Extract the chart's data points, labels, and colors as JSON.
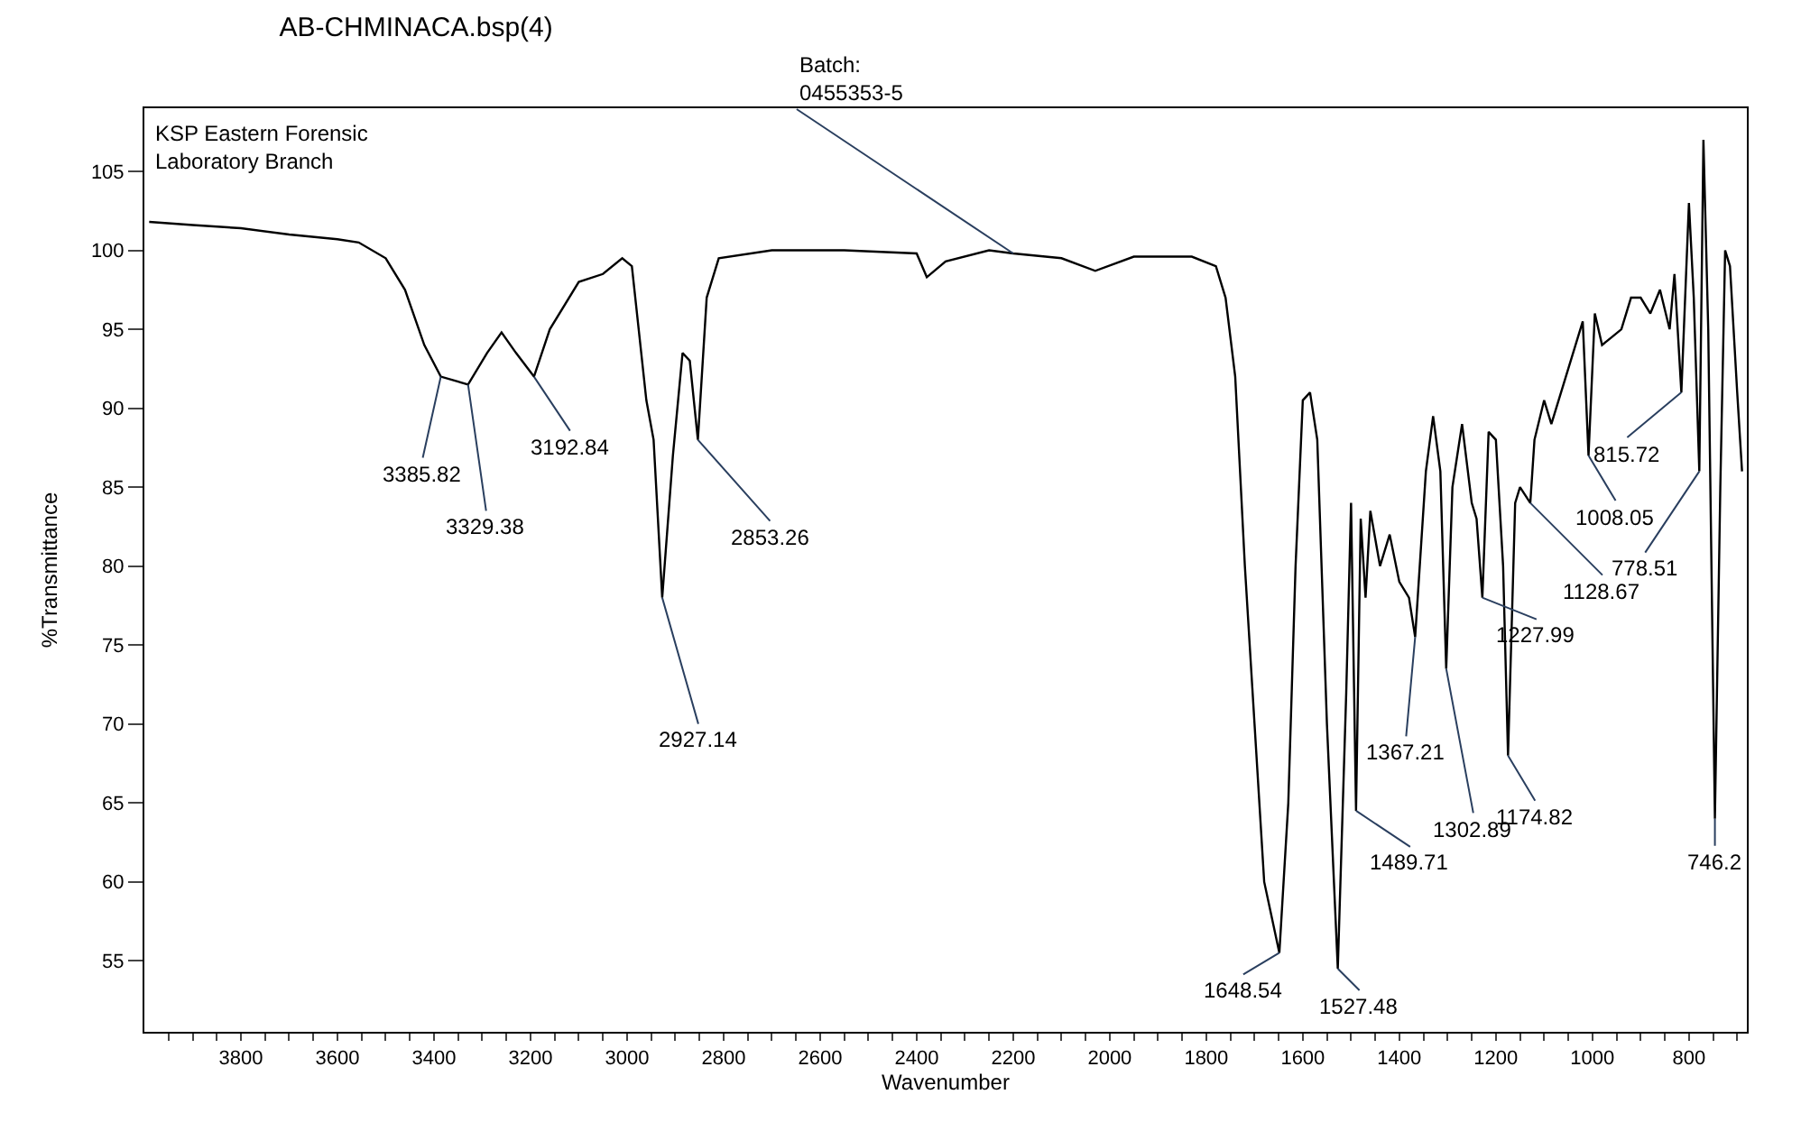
{
  "chart_data": {
    "type": "line",
    "title": "AB-CHMINACA.bsp(4)",
    "xlabel": "Wavenumber",
    "ylabel": "%Transmittance",
    "x": [
      3990,
      3900,
      3800,
      3700,
      3600,
      3556,
      3500,
      3460,
      3420,
      3385.82,
      3329.38,
      3290,
      3260,
      3230,
      3192.84,
      3160,
      3100,
      3050,
      3010,
      2990,
      2960,
      2945,
      2927.14,
      2905,
      2885,
      2870,
      2853.26,
      2835,
      2810,
      2700,
      2550,
      2400,
      2379,
      2340,
      2250,
      2200,
      2100,
      2030,
      1950,
      1830,
      1780,
      1760,
      1740,
      1720,
      1700,
      1680,
      1648.54,
      1630,
      1615,
      1600,
      1585,
      1570,
      1550,
      1527.48,
      1510,
      1500,
      1489.71,
      1480,
      1470,
      1460,
      1440,
      1420,
      1400,
      1380,
      1367.21,
      1345,
      1330,
      1315,
      1302.89,
      1290,
      1270,
      1250,
      1240,
      1227.99,
      1215,
      1200,
      1185,
      1174.82,
      1160,
      1150,
      1128.67,
      1120,
      1100,
      1085,
      1060,
      1040,
      1020,
      1008.05,
      995,
      980,
      960,
      940,
      920,
      900,
      880,
      860,
      840,
      830,
      815.72,
      800,
      790,
      778.51,
      770,
      760,
      746.2,
      735,
      725,
      715,
      700,
      690
    ],
    "values": [
      101.8,
      101.6,
      101.4,
      101,
      100.7,
      100.5,
      99.5,
      97.5,
      94,
      92,
      91.5,
      93.5,
      94.8,
      93.5,
      92,
      95,
      98,
      98.5,
      99.5,
      99,
      90.5,
      88,
      78,
      87,
      93.5,
      93,
      88,
      97,
      99.5,
      100,
      100,
      99.8,
      98.3,
      99.3,
      100,
      99.8,
      99.5,
      98.7,
      99.6,
      99.6,
      99,
      97,
      92,
      80,
      70,
      60,
      55.5,
      65,
      80,
      90.5,
      91,
      88,
      70,
      54.5,
      72,
      84,
      64.5,
      83,
      78,
      83.5,
      80,
      82,
      79,
      78,
      75.5,
      86,
      89.5,
      86,
      73.5,
      85,
      89,
      84,
      83,
      78,
      88.5,
      88,
      80,
      68,
      84,
      85,
      84,
      88,
      90.5,
      89,
      91.5,
      93.5,
      95.5,
      87,
      96,
      94,
      94.5,
      95,
      97,
      97,
      96,
      97.5,
      95,
      98.5,
      91,
      103,
      97,
      86,
      107,
      95,
      64,
      85,
      100,
      99,
      91,
      86
    ],
    "color": "#000000",
    "line_style": "solid",
    "marker": "none",
    "legend": false,
    "xlim": [
      4000,
      680
    ],
    "ylim": [
      50.5,
      109
    ],
    "yticks": [
      55,
      60,
      65,
      70,
      75,
      80,
      85,
      90,
      95,
      100,
      105
    ],
    "xticks": [
      {
        "value": 3950,
        "label": null
      },
      {
        "value": 3900,
        "label": null
      },
      {
        "value": 3850,
        "label": null
      },
      3800,
      {
        "value": 3750,
        "label": null
      },
      {
        "value": 3700,
        "label": null
      },
      {
        "value": 3650,
        "label": null
      },
      3600,
      {
        "value": 3550,
        "label": null
      },
      {
        "value": 3500,
        "label": null
      },
      {
        "value": 3450,
        "label": null
      },
      3400,
      {
        "value": 3350,
        "label": null
      },
      {
        "value": 3300,
        "label": null
      },
      {
        "value": 3250,
        "label": null
      },
      3200,
      {
        "value": 3150,
        "label": null
      },
      {
        "value": 3100,
        "label": null
      },
      {
        "value": 3050,
        "label": null
      },
      3000,
      {
        "value": 2950,
        "label": null
      },
      {
        "value": 2900,
        "label": null
      },
      {
        "value": 2850,
        "label": null
      },
      2800,
      {
        "value": 2750,
        "label": null
      },
      {
        "value": 2700,
        "label": null
      },
      {
        "value": 2650,
        "label": null
      },
      2600,
      {
        "value": 2550,
        "label": null
      },
      {
        "value": 2500,
        "label": null
      },
      {
        "value": 2450,
        "label": null
      },
      2400,
      {
        "value": 2350,
        "label": null
      },
      {
        "value": 2300,
        "label": null
      },
      {
        "value": 2250,
        "label": null
      },
      2200,
      {
        "value": 2150,
        "label": null
      },
      {
        "value": 2100,
        "label": null
      },
      {
        "value": 2050,
        "label": null
      },
      2000,
      {
        "value": 1950,
        "label": null
      },
      {
        "value": 1900,
        "label": null
      },
      {
        "value": 1850,
        "label": null
      },
      1800,
      {
        "value": 1750,
        "label": null
      },
      {
        "value": 1700,
        "label": null
      },
      {
        "value": 1650,
        "label": null
      },
      1600,
      {
        "value": 1550,
        "label": null
      },
      {
        "value": 1500,
        "label": null
      },
      {
        "value": 1450,
        "label": null
      },
      1400,
      {
        "value": 1350,
        "label": null
      },
      {
        "value": 1300,
        "label": null
      },
      {
        "value": 1250,
        "label": null
      },
      1200,
      {
        "value": 1150,
        "label": null
      },
      {
        "value": 1100,
        "label": null
      },
      {
        "value": 1050,
        "label": null
      },
      1000,
      {
        "value": 950,
        "label": null
      },
      {
        "value": 900,
        "label": null
      },
      {
        "value": 850,
        "label": null
      },
      800,
      {
        "value": 750,
        "label": null
      },
      {
        "value": 700,
        "label": null
      }
    ],
    "annotations": [
      "KSP Eastern Forensic\nLaboratory Branch",
      {
        "text": "Batch:\n0455353-5",
        "x": 2200,
        "y": 99.8
      },
      {
        "text": "3385.82",
        "x": 3385.82,
        "y": 92
      },
      {
        "text": "3329.38",
        "x": 3329.38,
        "y": 91.5
      },
      {
        "text": "3192.84",
        "x": 3192.84,
        "y": 92
      },
      {
        "text": "2927.14",
        "x": 2927.14,
        "y": 78
      },
      {
        "text": "2853.26",
        "x": 2853.26,
        "y": 88
      },
      {
        "text": "1648.54",
        "x": 1648.54,
        "y": 55.5
      },
      {
        "text": "1527.48",
        "x": 1527.48,
        "y": 54.5
      },
      {
        "text": "1489.71",
        "x": 1489.71,
        "y": 64.5
      },
      {
        "text": "1367.21",
        "x": 1367.21,
        "y": 75.5
      },
      {
        "text": "1302.89",
        "x": 1302.89,
        "y": 73.5
      },
      {
        "text": "1227.99",
        "x": 1227.99,
        "y": 78
      },
      {
        "text": "1174.82",
        "x": 1174.82,
        "y": 68
      },
      {
        "text": "1128.67",
        "x": 1128.67,
        "y": 84
      },
      {
        "text": "1008.05",
        "x": 1008.05,
        "y": 87
      },
      {
        "text": "815.72",
        "x": 815.72,
        "y": 91
      },
      {
        "text": "778.51",
        "x": 778.51,
        "y": 86
      },
      {
        "text": "746.2",
        "x": 746.2,
        "y": 64
      }
    ]
  }
}
